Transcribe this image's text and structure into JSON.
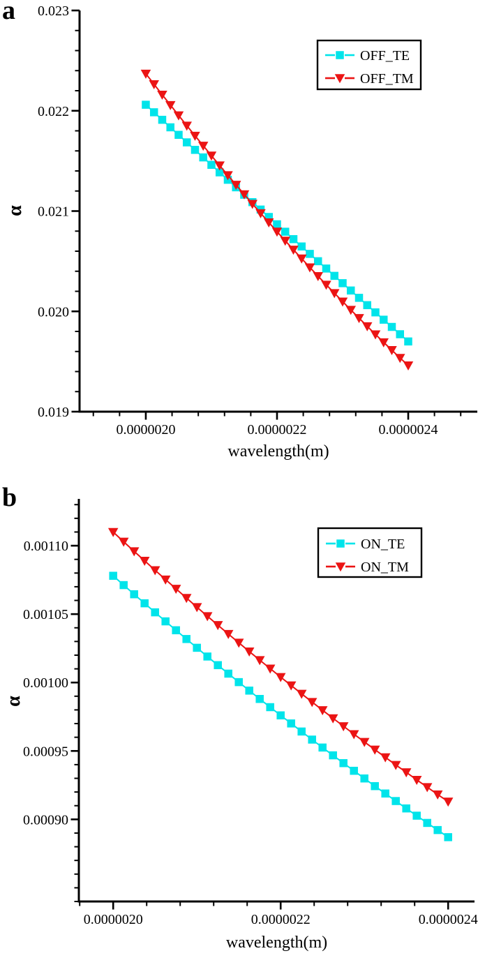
{
  "figure": {
    "background": "#ffffff",
    "axis_color": "#000000",
    "panel_letters": [
      "a",
      "b"
    ]
  },
  "chart_data": [
    {
      "type": "line",
      "panel_label": "a",
      "title": "",
      "xlabel": "wavelength(m)",
      "ylabel": "α",
      "grid": false,
      "legend_position": "top-right",
      "xlim": [
        1.899e-06,
        2.5053e-06
      ],
      "ylim": [
        0.019,
        0.023
      ],
      "xticks": {
        "values": [
          2e-06,
          2.2e-06,
          2.4e-06
        ],
        "labels": [
          "0.0000020",
          "0.0000022",
          "0.0000024"
        ],
        "minor_step": 4e-08
      },
      "yticks": {
        "values": [
          0.019,
          0.02,
          0.021,
          0.022,
          0.023
        ],
        "labels": [
          "0.019",
          "0.020",
          "0.021",
          "0.022",
          "0.023"
        ],
        "minor_step": 0.0002
      },
      "x": [
        2e-06,
        2.0125e-06,
        2.025e-06,
        2.0375e-06,
        2.05e-06,
        2.0625e-06,
        2.075e-06,
        2.0875e-06,
        2.1e-06,
        2.1125e-06,
        2.125e-06,
        2.1375e-06,
        2.15e-06,
        2.1625e-06,
        2.175e-06,
        2.1875e-06,
        2.2e-06,
        2.2125e-06,
        2.225e-06,
        2.2375e-06,
        2.25e-06,
        2.2625e-06,
        2.275e-06,
        2.2875e-06,
        2.3e-06,
        2.3125e-06,
        2.325e-06,
        2.3375e-06,
        2.35e-06,
        2.3625e-06,
        2.375e-06,
        2.3875e-06,
        2.4e-06
      ],
      "series": [
        {
          "name": "OFF_TE",
          "color": "#00E4EA",
          "marker": "square",
          "values": [
            0.02206,
            0.021985,
            0.02191,
            0.021835,
            0.02176,
            0.021685,
            0.02161,
            0.021535,
            0.021461,
            0.021386,
            0.021312,
            0.021237,
            0.021163,
            0.021089,
            0.021015,
            0.020941,
            0.020868,
            0.020794,
            0.02072,
            0.020647,
            0.020573,
            0.0205,
            0.020427,
            0.020354,
            0.020281,
            0.020208,
            0.020135,
            0.020062,
            0.01999,
            0.019917,
            0.019845,
            0.019772,
            0.0197
          ]
        },
        {
          "name": "OFF_TM",
          "color": "#EB1414",
          "marker": "triangle-down",
          "values": [
            0.02237,
            0.022265,
            0.02216,
            0.022057,
            0.021954,
            0.021852,
            0.021751,
            0.021652,
            0.021553,
            0.021455,
            0.021358,
            0.021262,
            0.021167,
            0.021072,
            0.020979,
            0.020887,
            0.020795,
            0.020705,
            0.020615,
            0.020527,
            0.020439,
            0.020352,
            0.020266,
            0.020182,
            0.020098,
            0.020015,
            0.019933,
            0.019852,
            0.019771,
            0.019692,
            0.019614,
            0.019536,
            0.019461
          ]
        }
      ]
    },
    {
      "type": "line",
      "panel_label": "b",
      "title": "",
      "xlabel": "wavelength(m)",
      "ylabel": "α",
      "grid": false,
      "legend_position": "top-right",
      "xlim": [
        1.959e-06,
        2.4315e-06
      ],
      "ylim": [
        0.00084,
        0.0011342
      ],
      "xticks": {
        "values": [
          2e-06,
          2.2e-06,
          2.4e-06
        ],
        "labels": [
          "0.0000020",
          "0.0000022",
          "0.0000024"
        ],
        "minor_step": 4e-08
      },
      "yticks": {
        "values": [
          0.0009,
          0.00095,
          0.001,
          0.00105,
          0.0011
        ],
        "labels": [
          "0.00090",
          "0.00095",
          "0.00100",
          "0.00105",
          "0.00110"
        ],
        "minor_step": 1e-05
      },
      "x": [
        2e-06,
        2.0125e-06,
        2.025e-06,
        2.0375e-06,
        2.05e-06,
        2.0625e-06,
        2.075e-06,
        2.0875e-06,
        2.1e-06,
        2.1125e-06,
        2.125e-06,
        2.1375e-06,
        2.15e-06,
        2.1625e-06,
        2.175e-06,
        2.1875e-06,
        2.2e-06,
        2.2125e-06,
        2.225e-06,
        2.2375e-06,
        2.25e-06,
        2.2625e-06,
        2.275e-06,
        2.2875e-06,
        2.3e-06,
        2.3125e-06,
        2.325e-06,
        2.3375e-06,
        2.35e-06,
        2.3625e-06,
        2.375e-06,
        2.3875e-06,
        2.4e-06
      ],
      "series": [
        {
          "name": "ON_TE",
          "color": "#00E4EA",
          "marker": "square",
          "values": [
            0.001078,
            0.0010712,
            0.0010645,
            0.0010579,
            0.0010513,
            0.0010447,
            0.0010382,
            0.0010318,
            0.0010254,
            0.001019,
            0.0010127,
            0.0010065,
            0.0010003,
            0.0009941,
            0.000988,
            0.000982,
            0.000976,
            0.0009701,
            0.0009642,
            0.0009583,
            0.0009525,
            0.0009468,
            0.0009411,
            0.0009355,
            0.0009299,
            0.0009243,
            0.0009189,
            0.0009134,
            0.000908,
            0.0009027,
            0.0008974,
            0.0008922,
            0.000887
          ]
        },
        {
          "name": "ON_TM",
          "color": "#EB1414",
          "marker": "triangle-down",
          "values": [
            0.00111,
            0.0011029,
            0.0010959,
            0.001089,
            0.0010821,
            0.0010753,
            0.0010685,
            0.0010618,
            0.0010551,
            0.0010485,
            0.001042,
            0.0010355,
            0.0010291,
            0.0010227,
            0.0010164,
            0.0010102,
            0.001004,
            0.0009979,
            0.0009918,
            0.0009858,
            0.0009798,
            0.0009739,
            0.0009681,
            0.0009623,
            0.0009566,
            0.000951,
            0.0009454,
            0.0009398,
            0.0009344,
            0.0009289,
            0.0009236,
            0.0009182,
            0.000913
          ]
        }
      ]
    }
  ]
}
